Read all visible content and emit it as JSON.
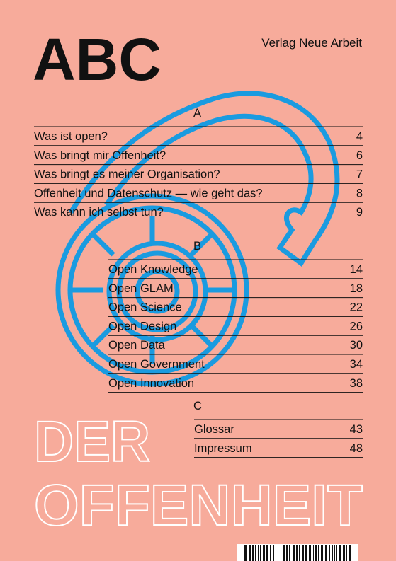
{
  "header": {
    "title": "ABC",
    "publisher": "Verlag Neue Arbeit"
  },
  "sections": [
    {
      "letter": "A",
      "entries": [
        {
          "title": "Was ist open?",
          "page": 4
        },
        {
          "title": "Was bringt mir Offenheit?",
          "page": 6
        },
        {
          "title": "Was bringt es meiner Organisation?",
          "page": 7
        },
        {
          "title": "Offenheit und Datenschutz — wie geht das?",
          "page": 8
        },
        {
          "title": "Was kann ich selbst tun?",
          "page": 9
        }
      ]
    },
    {
      "letter": "B",
      "entries": [
        {
          "title": "Open Knowledge",
          "page": 14
        },
        {
          "title": "Open GLAM",
          "page": 18
        },
        {
          "title": "Open Science",
          "page": 22
        },
        {
          "title": "Open Design",
          "page": 26
        },
        {
          "title": "Open Data",
          "page": 30
        },
        {
          "title": "Open Government",
          "page": 34
        },
        {
          "title": "Open Innovation",
          "page": 38
        }
      ]
    },
    {
      "letter": "C",
      "entries": [
        {
          "title": "Glossar",
          "page": 43
        },
        {
          "title": "Impressum",
          "page": 48
        }
      ]
    }
  ],
  "footer": {
    "line1": "DER",
    "line2": "OFFENHEIT"
  }
}
